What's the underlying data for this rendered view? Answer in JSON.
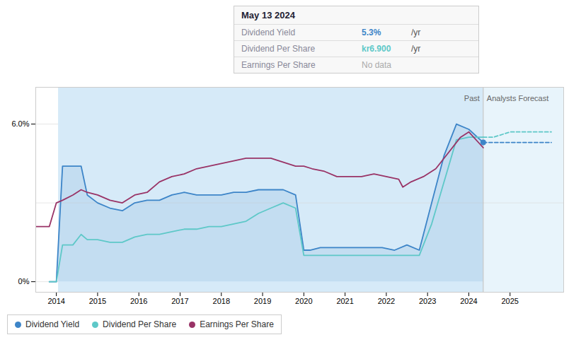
{
  "chart_data": {
    "type": "line",
    "xlim": [
      2013.5,
      2026.3
    ],
    "xticks": [
      2014,
      2015,
      2016,
      2017,
      2018,
      2019,
      2020,
      2021,
      2022,
      2023,
      2024,
      2025
    ],
    "ylim": [
      -0.004,
      0.074
    ],
    "yticks": [
      {
        "value": 0.0,
        "label": "0%"
      },
      {
        "value": 0.06,
        "label": "6.0%"
      }
    ],
    "grid": true,
    "reference_lines": [
      0.03
    ],
    "regions": [
      {
        "x": [
          2014.05,
          2024.35
        ],
        "color": "#d6eaf8"
      },
      {
        "x": [
          2024.35,
          2026.3
        ],
        "color": "#e8f4fb"
      }
    ],
    "annotations": [
      {
        "x": 2024.35,
        "labels": [
          "Past",
          "Analysts Forecast"
        ]
      }
    ],
    "legend": "bottom",
    "series": [
      {
        "name": "Dividend Yield",
        "color": "#3d85c8",
        "type": "area",
        "line_style": "solid",
        "x": [
          2013.83,
          2014.0,
          2014.15,
          2014.4,
          2014.6,
          2014.75,
          2015.0,
          2015.3,
          2015.6,
          2015.9,
          2016.2,
          2016.5,
          2016.8,
          2017.1,
          2017.4,
          2017.7,
          2018.0,
          2018.3,
          2018.6,
          2018.9,
          2019.2,
          2019.5,
          2019.8,
          2020.0,
          2020.15,
          2020.4,
          2020.7,
          2021.0,
          2021.3,
          2021.6,
          2021.9,
          2022.2,
          2022.5,
          2022.8,
          2023.1,
          2023.4,
          2023.7,
          2024.0,
          2024.35
        ],
        "values": [
          0.0,
          0.0,
          0.044,
          0.044,
          0.044,
          0.033,
          0.03,
          0.028,
          0.027,
          0.03,
          0.031,
          0.031,
          0.033,
          0.034,
          0.033,
          0.033,
          0.033,
          0.034,
          0.034,
          0.035,
          0.035,
          0.035,
          0.033,
          0.012,
          0.012,
          0.013,
          0.013,
          0.013,
          0.013,
          0.013,
          0.013,
          0.012,
          0.014,
          0.012,
          0.03,
          0.048,
          0.06,
          0.058,
          0.053
        ]
      },
      {
        "name": "Dividend Yield",
        "color": "#3d85c8",
        "type": "line",
        "line_style": "dashed",
        "x": [
          2024.35,
          2024.6,
          2025.0,
          2025.5,
          2026.0
        ],
        "values": [
          0.053,
          0.053,
          0.053,
          0.053,
          0.053
        ]
      },
      {
        "name": "Dividend Per Share",
        "color": "#5ec8c8",
        "type": "line",
        "line_style": "solid",
        "x": [
          2013.83,
          2014.0,
          2014.15,
          2014.4,
          2014.6,
          2014.75,
          2015.0,
          2015.3,
          2015.6,
          2015.9,
          2016.2,
          2016.5,
          2016.8,
          2017.1,
          2017.4,
          2017.7,
          2018.0,
          2018.3,
          2018.6,
          2018.9,
          2019.2,
          2019.5,
          2019.8,
          2020.0,
          2020.15,
          2020.4,
          2020.7,
          2021.0,
          2021.3,
          2021.6,
          2021.9,
          2022.2,
          2022.5,
          2022.8,
          2023.1,
          2023.4,
          2023.7,
          2024.0,
          2024.35
        ],
        "values": [
          0.0,
          0.0,
          0.014,
          0.014,
          0.018,
          0.016,
          0.016,
          0.015,
          0.015,
          0.017,
          0.018,
          0.018,
          0.019,
          0.02,
          0.02,
          0.021,
          0.021,
          0.022,
          0.023,
          0.026,
          0.028,
          0.03,
          0.028,
          0.01,
          0.01,
          0.01,
          0.01,
          0.01,
          0.01,
          0.01,
          0.01,
          0.01,
          0.01,
          0.01,
          0.022,
          0.038,
          0.054,
          0.055,
          0.055
        ]
      },
      {
        "name": "Dividend Per Share",
        "color": "#5ec8c8",
        "type": "line",
        "line_style": "dashed",
        "x": [
          2024.35,
          2024.6,
          2025.0,
          2025.5,
          2026.0
        ],
        "values": [
          0.055,
          0.055,
          0.057,
          0.057,
          0.057
        ]
      },
      {
        "name": "Earnings Per Share",
        "color": "#993366",
        "type": "line",
        "line_style": "solid",
        "x": [
          2013.5,
          2013.83,
          2014.0,
          2014.15,
          2014.4,
          2014.6,
          2014.75,
          2015.0,
          2015.3,
          2015.6,
          2015.9,
          2016.2,
          2016.5,
          2016.8,
          2017.1,
          2017.4,
          2017.7,
          2018.0,
          2018.3,
          2018.6,
          2018.9,
          2019.0,
          2019.2,
          2019.4,
          2019.6,
          2019.8,
          2020.0,
          2020.2,
          2020.5,
          2020.8,
          2021.1,
          2021.4,
          2021.7,
          2022.0,
          2022.3,
          2022.4,
          2022.6,
          2022.9,
          2023.2,
          2023.5,
          2023.8,
          2024.0,
          2024.35
        ],
        "values": [
          0.021,
          0.021,
          0.03,
          0.031,
          0.033,
          0.035,
          0.034,
          0.033,
          0.031,
          0.03,
          0.033,
          0.034,
          0.038,
          0.04,
          0.041,
          0.043,
          0.044,
          0.045,
          0.046,
          0.047,
          0.047,
          0.047,
          0.047,
          0.046,
          0.045,
          0.044,
          0.044,
          0.043,
          0.042,
          0.04,
          0.04,
          0.04,
          0.041,
          0.04,
          0.039,
          0.036,
          0.038,
          0.04,
          0.043,
          0.049,
          0.055,
          0.057,
          0.051
        ]
      },
      {
        "name": "Dividend Yield",
        "color": "#3d85c8",
        "type": "scatter",
        "x": [
          2024.35
        ],
        "values": [
          0.053
        ]
      }
    ],
    "tooltip": {
      "title": "May 13 2024",
      "rows": [
        {
          "label": "Dividend Yield",
          "value": "5.3%",
          "suffix": "/yr",
          "color": "#3d85c8"
        },
        {
          "label": "Dividend Per Share",
          "value": "kr6.900",
          "suffix": "/yr",
          "color": "#5ec8c8"
        },
        {
          "label": "Earnings Per Share",
          "value": "No data",
          "color": "#aaaaaa"
        }
      ]
    }
  }
}
